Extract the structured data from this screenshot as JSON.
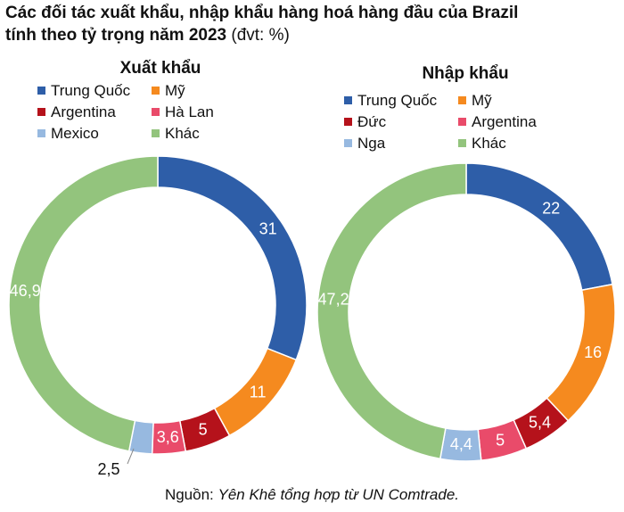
{
  "title": {
    "line1": "Các đối tác xuất khẩu, nhập khẩu hàng hoá hàng đầu của Brazil",
    "line2_bold": "tính theo tỷ trọng năm 2023",
    "line2_unit": " (đvt: %)"
  },
  "source": {
    "prefix": "Nguồn: ",
    "text": "Yên Khê tổng hợp từ UN Comtrade."
  },
  "chart_data": [
    {
      "type": "pie",
      "title": "Xuất khẩu",
      "categories": [
        "Trung Quốc",
        "Mỹ",
        "Argentina",
        "Hà Lan",
        "Mexico",
        "Khác"
      ],
      "values": [
        31,
        11,
        5,
        3.6,
        2.5,
        46.9
      ],
      "value_labels": [
        "31",
        "11",
        "5",
        "3,6",
        "2,5",
        "46,9"
      ],
      "colors": [
        "#2E5EA8",
        "#F58A1F",
        "#B5121B",
        "#E94B6A",
        "#97B9E0",
        "#93C47D"
      ],
      "legend": "top",
      "style": "donut"
    },
    {
      "type": "pie",
      "title": "Nhập khẩu",
      "categories": [
        "Trung Quốc",
        "Mỹ",
        "Đức",
        "Argentina",
        "Nga",
        "Khác"
      ],
      "values": [
        22,
        16,
        5.4,
        5,
        4.4,
        47.2
      ],
      "value_labels": [
        "22",
        "16",
        "5,4",
        "5",
        "4,4",
        "47,2"
      ],
      "colors": [
        "#2E5EA8",
        "#F58A1F",
        "#B5121B",
        "#E94B6A",
        "#97B9E0",
        "#93C47D"
      ],
      "legend": "top",
      "style": "donut"
    }
  ]
}
